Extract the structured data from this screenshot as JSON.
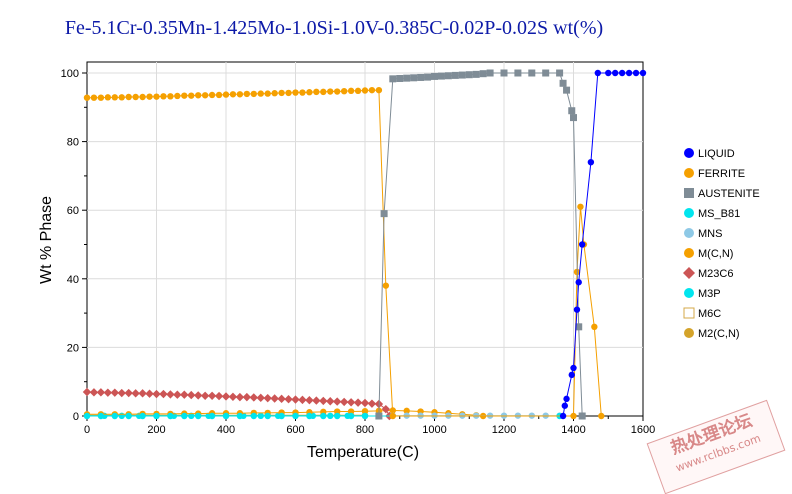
{
  "chart_data": {
    "type": "line",
    "title": "Fe-5.1Cr-0.35Mn-1.425Mo-1.0Si-1.0V-0.385C-0.02P-0.02S wt(%)",
    "xlabel": "Temperature(C)",
    "ylabel": "Wt % Phase",
    "xlim": [
      0,
      1600
    ],
    "ylim": [
      0,
      100
    ],
    "x_ticks": [
      0,
      200,
      400,
      600,
      800,
      1000,
      1200,
      1400,
      1600
    ],
    "y_ticks": [
      0,
      20,
      40,
      60,
      80,
      100
    ],
    "grid": true,
    "legend_position": "right",
    "series": [
      {
        "name": "LIQUID",
        "color": "#0000ff",
        "marker": "circle",
        "points": [
          [
            1370,
            0
          ],
          [
            1375,
            3
          ],
          [
            1380,
            5
          ],
          [
            1395,
            12
          ],
          [
            1400,
            14
          ],
          [
            1410,
            31
          ],
          [
            1415,
            39
          ],
          [
            1425,
            50
          ],
          [
            1450,
            74
          ],
          [
            1470,
            100
          ],
          [
            1500,
            100
          ],
          [
            1520,
            100
          ],
          [
            1540,
            100
          ],
          [
            1560,
            100
          ],
          [
            1580,
            100
          ],
          [
            1600,
            100
          ]
        ]
      },
      {
        "name": "FERRITE",
        "color": "#f5a000",
        "marker": "circle",
        "points": [
          [
            0,
            92.8
          ],
          [
            20,
            92.8
          ],
          [
            40,
            92.8
          ],
          [
            60,
            92.9
          ],
          [
            80,
            92.9
          ],
          [
            100,
            92.9
          ],
          [
            120,
            93.0
          ],
          [
            140,
            93.0
          ],
          [
            160,
            93.0
          ],
          [
            180,
            93.1
          ],
          [
            200,
            93.1
          ],
          [
            220,
            93.2
          ],
          [
            240,
            93.2
          ],
          [
            260,
            93.3
          ],
          [
            280,
            93.4
          ],
          [
            300,
            93.4
          ],
          [
            320,
            93.5
          ],
          [
            340,
            93.5
          ],
          [
            360,
            93.6
          ],
          [
            380,
            93.6
          ],
          [
            400,
            93.7
          ],
          [
            420,
            93.8
          ],
          [
            440,
            93.8
          ],
          [
            460,
            93.9
          ],
          [
            480,
            93.9
          ],
          [
            500,
            94.0
          ],
          [
            520,
            94.0
          ],
          [
            540,
            94.1
          ],
          [
            560,
            94.2
          ],
          [
            580,
            94.2
          ],
          [
            600,
            94.3
          ],
          [
            620,
            94.3
          ],
          [
            640,
            94.4
          ],
          [
            660,
            94.5
          ],
          [
            680,
            94.5
          ],
          [
            700,
            94.6
          ],
          [
            720,
            94.6
          ],
          [
            740,
            94.7
          ],
          [
            760,
            94.8
          ],
          [
            780,
            94.8
          ],
          [
            800,
            94.9
          ],
          [
            820,
            95.0
          ],
          [
            840,
            95.0
          ],
          [
            860,
            38
          ],
          [
            880,
            0
          ],
          [
            1400,
            0
          ],
          [
            1410,
            42
          ],
          [
            1420,
            61
          ],
          [
            1430,
            50
          ],
          [
            1460,
            26
          ],
          [
            1480,
            0
          ]
        ]
      },
      {
        "name": "AUSTENITE",
        "color": "#7f8c96",
        "marker": "square",
        "points": [
          [
            840,
            0
          ],
          [
            855,
            59
          ],
          [
            880,
            98.3
          ],
          [
            900,
            98.4
          ],
          [
            920,
            98.5
          ],
          [
            940,
            98.6
          ],
          [
            960,
            98.7
          ],
          [
            980,
            98.8
          ],
          [
            1000,
            99.0
          ],
          [
            1020,
            99.1
          ],
          [
            1040,
            99.2
          ],
          [
            1060,
            99.3
          ],
          [
            1080,
            99.4
          ],
          [
            1100,
            99.5
          ],
          [
            1120,
            99.6
          ],
          [
            1140,
            99.8
          ],
          [
            1160,
            100
          ],
          [
            1200,
            100
          ],
          [
            1240,
            100
          ],
          [
            1280,
            100
          ],
          [
            1320,
            100
          ],
          [
            1360,
            100
          ],
          [
            1370,
            97
          ],
          [
            1380,
            95
          ],
          [
            1395,
            89
          ],
          [
            1400,
            87
          ],
          [
            1415,
            26
          ],
          [
            1425,
            0
          ]
        ]
      },
      {
        "name": "MS_B81",
        "color": "#00e5ee",
        "marker": "circle",
        "points": [
          [
            0,
            0
          ],
          [
            40,
            0
          ],
          [
            80,
            0
          ],
          [
            120,
            0
          ],
          [
            160,
            0
          ],
          [
            200,
            0
          ],
          [
            240,
            0
          ],
          [
            280,
            0
          ],
          [
            320,
            0
          ],
          [
            360,
            0
          ],
          [
            400,
            0
          ],
          [
            440,
            0
          ],
          [
            480,
            0
          ],
          [
            520,
            0
          ],
          [
            560,
            0
          ],
          [
            600,
            0
          ],
          [
            640,
            0
          ],
          [
            680,
            0
          ],
          [
            720,
            0
          ],
          [
            760,
            0
          ],
          [
            800,
            0
          ],
          [
            840,
            0
          ],
          [
            1360,
            0
          ]
        ]
      },
      {
        "name": "MNS",
        "color": "#8ec9e6",
        "marker": "circle",
        "points": [
          [
            880,
            0.1
          ],
          [
            920,
            0.1
          ],
          [
            960,
            0.1
          ],
          [
            1000,
            0.1
          ],
          [
            1040,
            0.1
          ],
          [
            1080,
            0.1
          ],
          [
            1120,
            0.1
          ],
          [
            1160,
            0.1
          ],
          [
            1200,
            0.1
          ],
          [
            1240,
            0.1
          ],
          [
            1280,
            0.1
          ],
          [
            1320,
            0.1
          ],
          [
            1360,
            0.1
          ]
        ]
      },
      {
        "name": "M(C,N)",
        "color": "#f5a000",
        "marker": "circle",
        "points": [
          [
            0,
            0.5
          ],
          [
            40,
            0.5
          ],
          [
            80,
            0.5
          ],
          [
            120,
            0.5
          ],
          [
            160,
            0.6
          ],
          [
            200,
            0.6
          ],
          [
            240,
            0.6
          ],
          [
            280,
            0.7
          ],
          [
            320,
            0.7
          ],
          [
            360,
            0.8
          ],
          [
            400,
            0.8
          ],
          [
            440,
            0.8
          ],
          [
            480,
            0.9
          ],
          [
            520,
            0.9
          ],
          [
            560,
            1.0
          ],
          [
            600,
            1.0
          ],
          [
            640,
            1.1
          ],
          [
            680,
            1.2
          ],
          [
            720,
            1.3
          ],
          [
            760,
            1.3
          ],
          [
            800,
            1.4
          ],
          [
            840,
            1.5
          ],
          [
            880,
            1.6
          ],
          [
            920,
            1.5
          ],
          [
            960,
            1.3
          ],
          [
            1000,
            1.1
          ],
          [
            1040,
            0.8
          ],
          [
            1080,
            0.5
          ],
          [
            1120,
            0.2
          ],
          [
            1140,
            0
          ]
        ]
      },
      {
        "name": "M23C6",
        "color": "#cc5555",
        "marker": "diamond",
        "points": [
          [
            0,
            7.0
          ],
          [
            20,
            6.9
          ],
          [
            40,
            6.9
          ],
          [
            60,
            6.8
          ],
          [
            80,
            6.8
          ],
          [
            100,
            6.7
          ],
          [
            120,
            6.7
          ],
          [
            140,
            6.6
          ],
          [
            160,
            6.6
          ],
          [
            180,
            6.5
          ],
          [
            200,
            6.4
          ],
          [
            220,
            6.4
          ],
          [
            240,
            6.3
          ],
          [
            260,
            6.2
          ],
          [
            280,
            6.2
          ],
          [
            300,
            6.1
          ],
          [
            320,
            6.0
          ],
          [
            340,
            5.9
          ],
          [
            360,
            5.9
          ],
          [
            380,
            5.8
          ],
          [
            400,
            5.7
          ],
          [
            420,
            5.6
          ],
          [
            440,
            5.5
          ],
          [
            460,
            5.5
          ],
          [
            480,
            5.4
          ],
          [
            500,
            5.3
          ],
          [
            520,
            5.2
          ],
          [
            540,
            5.1
          ],
          [
            560,
            5.0
          ],
          [
            580,
            4.9
          ],
          [
            600,
            4.8
          ],
          [
            620,
            4.7
          ],
          [
            640,
            4.6
          ],
          [
            660,
            4.5
          ],
          [
            680,
            4.4
          ],
          [
            700,
            4.3
          ],
          [
            720,
            4.2
          ],
          [
            740,
            4.1
          ],
          [
            760,
            4.0
          ],
          [
            780,
            3.9
          ],
          [
            800,
            3.8
          ],
          [
            820,
            3.6
          ],
          [
            840,
            3.5
          ],
          [
            860,
            2.0
          ],
          [
            870,
            0
          ]
        ]
      },
      {
        "name": "M3P",
        "color": "#00e5ee",
        "marker": "circle",
        "points": [
          [
            0,
            0.05
          ],
          [
            50,
            0.05
          ],
          [
            100,
            0.05
          ],
          [
            150,
            0.05
          ],
          [
            200,
            0.05
          ],
          [
            250,
            0.05
          ],
          [
            300,
            0.05
          ],
          [
            350,
            0.05
          ],
          [
            400,
            0.05
          ],
          [
            450,
            0.05
          ],
          [
            500,
            0.05
          ],
          [
            550,
            0.05
          ],
          [
            600,
            0.05
          ],
          [
            650,
            0.05
          ],
          [
            700,
            0.05
          ],
          [
            750,
            0.05
          ],
          [
            800,
            0.05
          ]
        ]
      },
      {
        "name": "M6C",
        "color": "#d4a94a",
        "marker": "hollow-square",
        "points": []
      },
      {
        "name": "M2(C,N)",
        "color": "#d4a32a",
        "marker": "circle",
        "points": [
          [
            0,
            0.2
          ],
          [
            40,
            0.2
          ],
          [
            80,
            0.2
          ],
          [
            120,
            0.2
          ],
          [
            160,
            0.2
          ],
          [
            200,
            0.2
          ],
          [
            240,
            0.2
          ],
          [
            280,
            0.2
          ],
          [
            320,
            0.2
          ],
          [
            360,
            0.2
          ],
          [
            400,
            0.2
          ],
          [
            440,
            0.2
          ],
          [
            480,
            0.2
          ],
          [
            520,
            0.2
          ],
          [
            560,
            0.2
          ],
          [
            600,
            0.2
          ],
          [
            640,
            0.2
          ],
          [
            680,
            0.2
          ],
          [
            720,
            0.2
          ],
          [
            760,
            0.2
          ],
          [
            800,
            0.2
          ]
        ]
      }
    ]
  },
  "watermark": {
    "main": "热处理论坛",
    "sub": "www.rclbbs.com"
  }
}
